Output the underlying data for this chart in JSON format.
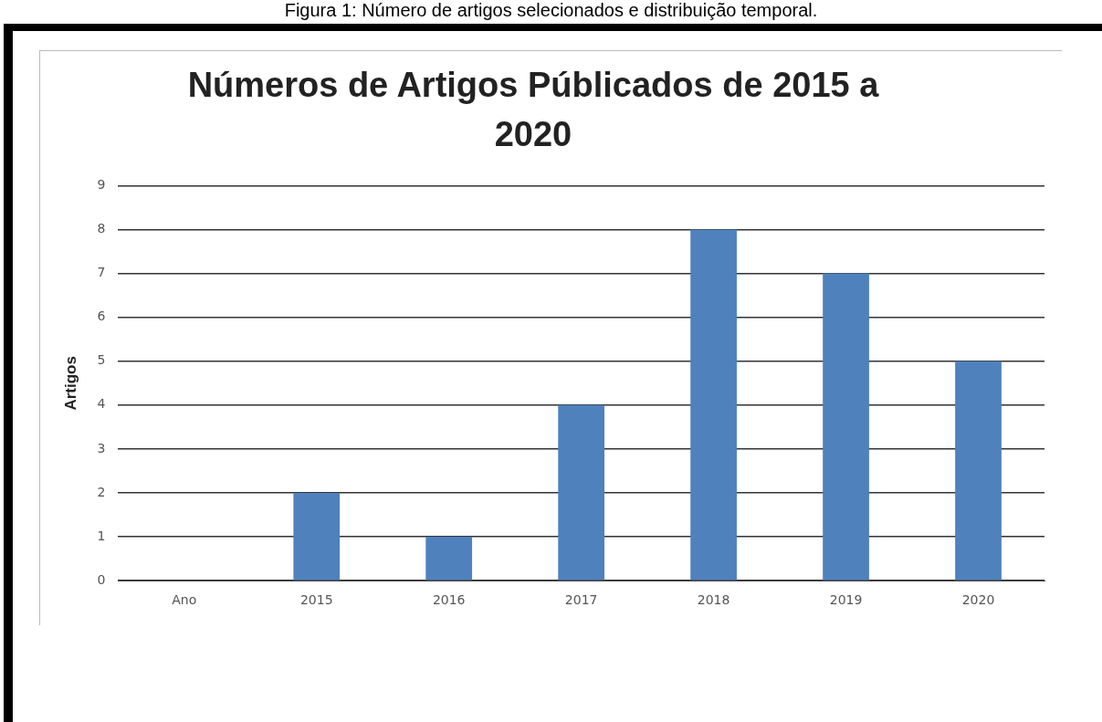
{
  "chart_data": {
    "type": "bar",
    "title": "Números de Artigos Públicados de 2015 a 2020",
    "ylabel": "Artigos",
    "annotations": [
      "Figura 1: Número de artigos selecionados e distribuição temporal."
    ],
    "categories": [
      "Ano",
      "2015",
      "2016",
      "2017",
      "2018",
      "2019",
      "2020"
    ],
    "values": [
      0,
      2,
      1,
      4,
      8,
      7,
      5
    ],
    "color": "#4f81bd",
    "ylim": [
      0,
      9
    ],
    "yticks": [
      0,
      1,
      2,
      3,
      4,
      5,
      6,
      7,
      8,
      9
    ],
    "grid": "y"
  }
}
